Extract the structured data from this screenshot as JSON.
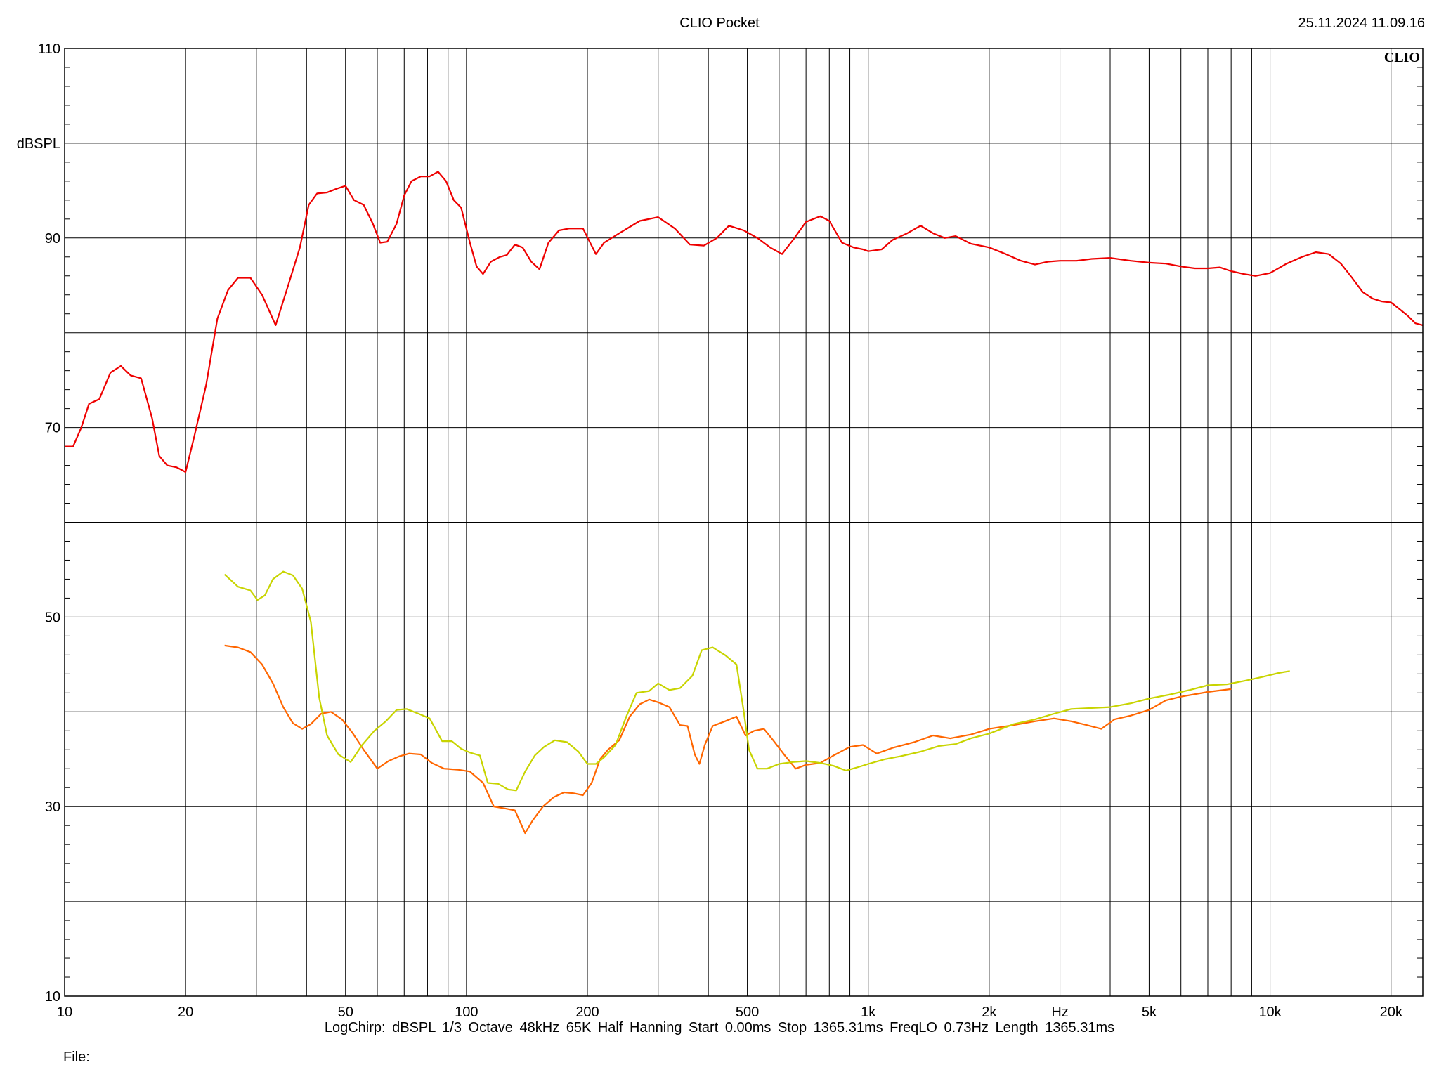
{
  "header": {
    "title": "CLIO Pocket",
    "timestamp": "25.11.2024 11.09.16"
  },
  "footer": {
    "settings": "LogChirp:  dBSPL   1/3 Octave   48kHz   65K   Half Hanning   Start 0.00ms    Stop 1365.31ms    FreqLO 0.73Hz    Length 1365.31ms",
    "file_label": "File:"
  },
  "chart_data": {
    "type": "line",
    "title": "CLIO Pocket",
    "brand_mark": "CLIO",
    "xlabel": "Hz",
    "ylabel": "dBSPL",
    "xscale": "log",
    "xlim": [
      10,
      24000
    ],
    "ylim": [
      10,
      110
    ],
    "grid": true,
    "x_ticks": [
      {
        "value": 10,
        "label": "10"
      },
      {
        "value": 20,
        "label": "20"
      },
      {
        "value": 50,
        "label": "50"
      },
      {
        "value": 100,
        "label": "100"
      },
      {
        "value": 200,
        "label": "200"
      },
      {
        "value": 500,
        "label": "500"
      },
      {
        "value": 1000,
        "label": "1k"
      },
      {
        "value": 2000,
        "label": "2k"
      },
      {
        "value": 5000,
        "label": "5k"
      },
      {
        "value": 10000,
        "label": "10k"
      },
      {
        "value": 20000,
        "label": "20k"
      }
    ],
    "y_ticks": [
      {
        "value": 110,
        "label": "110"
      },
      {
        "value": 90,
        "label": "90"
      },
      {
        "value": 70,
        "label": "70"
      },
      {
        "value": 50,
        "label": "50"
      },
      {
        "value": 30,
        "label": "30"
      },
      {
        "value": 10,
        "label": "10"
      }
    ],
    "series": [
      {
        "color": "#ee0000",
        "points": [
          [
            10,
            68
          ],
          [
            10.5,
            68
          ],
          [
            11,
            70
          ],
          [
            11.5,
            72.5
          ],
          [
            12.2,
            73
          ],
          [
            13,
            75.8
          ],
          [
            13.8,
            76.5
          ],
          [
            14.6,
            75.5
          ],
          [
            15.5,
            75.2
          ],
          [
            16.5,
            71
          ],
          [
            17.2,
            67
          ],
          [
            18,
            66
          ],
          [
            19,
            65.8
          ],
          [
            20,
            65.3
          ],
          [
            21,
            69
          ],
          [
            22.5,
            74.5
          ],
          [
            24,
            81.5
          ],
          [
            25.5,
            84.5
          ],
          [
            27,
            85.8
          ],
          [
            29,
            85.8
          ],
          [
            31,
            84
          ],
          [
            33.5,
            80.8
          ],
          [
            36,
            85
          ],
          [
            38.5,
            89
          ],
          [
            40.5,
            93.5
          ],
          [
            42.5,
            94.7
          ],
          [
            45,
            94.8
          ],
          [
            47.5,
            95.2
          ],
          [
            50,
            95.5
          ],
          [
            52.5,
            94
          ],
          [
            55.5,
            93.5
          ],
          [
            58.5,
            91.5
          ],
          [
            61,
            89.5
          ],
          [
            63.5,
            89.6
          ],
          [
            67,
            91.5
          ],
          [
            70,
            94.5
          ],
          [
            73,
            96
          ],
          [
            77,
            96.5
          ],
          [
            81,
            96.5
          ],
          [
            85,
            97
          ],
          [
            89,
            96
          ],
          [
            93,
            94
          ],
          [
            97,
            93.2
          ],
          [
            102,
            89.5
          ],
          [
            106,
            87
          ],
          [
            110,
            86.2
          ],
          [
            115,
            87.5
          ],
          [
            121,
            88
          ],
          [
            126,
            88.2
          ],
          [
            132,
            89.3
          ],
          [
            138,
            89
          ],
          [
            145,
            87.5
          ],
          [
            152,
            86.7
          ],
          [
            160,
            89.5
          ],
          [
            170,
            90.8
          ],
          [
            180,
            91
          ],
          [
            195,
            91
          ],
          [
            210,
            88.3
          ],
          [
            220,
            89.5
          ],
          [
            240,
            90.5
          ],
          [
            270,
            91.8
          ],
          [
            300,
            92.2
          ],
          [
            330,
            91
          ],
          [
            360,
            89.3
          ],
          [
            390,
            89.2
          ],
          [
            420,
            90
          ],
          [
            450,
            91.3
          ],
          [
            490,
            90.8
          ],
          [
            530,
            90
          ],
          [
            570,
            89
          ],
          [
            610,
            88.3
          ],
          [
            650,
            89.8
          ],
          [
            700,
            91.7
          ],
          [
            760,
            92.3
          ],
          [
            800,
            91.8
          ],
          [
            860,
            89.5
          ],
          [
            920,
            89
          ],
          [
            970,
            88.8
          ],
          [
            1000,
            88.6
          ],
          [
            1080,
            88.8
          ],
          [
            1150,
            89.8
          ],
          [
            1250,
            90.5
          ],
          [
            1350,
            91.3
          ],
          [
            1450,
            90.5
          ],
          [
            1550,
            90
          ],
          [
            1650,
            90.2
          ],
          [
            1800,
            89.4
          ],
          [
            2000,
            89
          ],
          [
            2200,
            88.3
          ],
          [
            2400,
            87.6
          ],
          [
            2600,
            87.2
          ],
          [
            2800,
            87.5
          ],
          [
            3000,
            87.6
          ],
          [
            3300,
            87.6
          ],
          [
            3600,
            87.8
          ],
          [
            4000,
            87.9
          ],
          [
            4500,
            87.6
          ],
          [
            5000,
            87.4
          ],
          [
            5500,
            87.3
          ],
          [
            6000,
            87
          ],
          [
            6500,
            86.8
          ],
          [
            7000,
            86.8
          ],
          [
            7500,
            86.9
          ],
          [
            8000,
            86.5
          ],
          [
            8600,
            86.2
          ],
          [
            9200,
            86
          ],
          [
            10000,
            86.3
          ],
          [
            11000,
            87.3
          ],
          [
            12000,
            88
          ],
          [
            13000,
            88.5
          ],
          [
            14000,
            88.3
          ],
          [
            15000,
            87.3
          ],
          [
            16000,
            85.8
          ],
          [
            17000,
            84.3
          ],
          [
            18000,
            83.6
          ],
          [
            19000,
            83.3
          ],
          [
            20000,
            83.2
          ],
          [
            21000,
            82.5
          ],
          [
            22000,
            81.8
          ],
          [
            23000,
            81
          ],
          [
            24000,
            80.8
          ]
        ]
      },
      {
        "color": "#ff6600",
        "points": [
          [
            25,
            47
          ],
          [
            27,
            46.8
          ],
          [
            29,
            46.3
          ],
          [
            31,
            45
          ],
          [
            33,
            43
          ],
          [
            35,
            40.5
          ],
          [
            37,
            38.8
          ],
          [
            39,
            38.2
          ],
          [
            41,
            38.7
          ],
          [
            43.5,
            39.8
          ],
          [
            46,
            40
          ],
          [
            49,
            39.2
          ],
          [
            52,
            37.8
          ],
          [
            55.5,
            36
          ],
          [
            60,
            34
          ],
          [
            64,
            34.8
          ],
          [
            68,
            35.3
          ],
          [
            72,
            35.6
          ],
          [
            77,
            35.5
          ],
          [
            82,
            34.6
          ],
          [
            88,
            34
          ],
          [
            95,
            33.9
          ],
          [
            102,
            33.7
          ],
          [
            110,
            32.5
          ],
          [
            117,
            30
          ],
          [
            125,
            29.8
          ],
          [
            132,
            29.6
          ],
          [
            140,
            27.2
          ],
          [
            146,
            28.5
          ],
          [
            155,
            30
          ],
          [
            165,
            31
          ],
          [
            175,
            31.5
          ],
          [
            185,
            31.4
          ],
          [
            195,
            31.2
          ],
          [
            205,
            32.5
          ],
          [
            215,
            35
          ],
          [
            225,
            36
          ],
          [
            240,
            37
          ],
          [
            255,
            39.5
          ],
          [
            270,
            40.8
          ],
          [
            285,
            41.3
          ],
          [
            300,
            41
          ],
          [
            320,
            40.5
          ],
          [
            340,
            38.6
          ],
          [
            355,
            38.5
          ],
          [
            370,
            35.5
          ],
          [
            380,
            34.5
          ],
          [
            392,
            36.5
          ],
          [
            410,
            38.5
          ],
          [
            440,
            39
          ],
          [
            470,
            39.5
          ],
          [
            495,
            37.5
          ],
          [
            520,
            38
          ],
          [
            550,
            38.2
          ],
          [
            580,
            37
          ],
          [
            620,
            35.4
          ],
          [
            660,
            34
          ],
          [
            700,
            34.4
          ],
          [
            760,
            34.6
          ],
          [
            820,
            35.4
          ],
          [
            900,
            36.3
          ],
          [
            970,
            36.5
          ],
          [
            1050,
            35.6
          ],
          [
            1150,
            36.2
          ],
          [
            1300,
            36.8
          ],
          [
            1450,
            37.5
          ],
          [
            1600,
            37.2
          ],
          [
            1800,
            37.6
          ],
          [
            2000,
            38.2
          ],
          [
            2300,
            38.6
          ],
          [
            2600,
            39
          ],
          [
            2900,
            39.3
          ],
          [
            3200,
            39
          ],
          [
            3500,
            38.6
          ],
          [
            3800,
            38.2
          ],
          [
            4100,
            39.2
          ],
          [
            4500,
            39.6
          ],
          [
            5000,
            40.2
          ],
          [
            5500,
            41.2
          ],
          [
            6000,
            41.6
          ],
          [
            7000,
            42.1
          ],
          [
            8000,
            42.4
          ]
        ]
      },
      {
        "color": "#c8d400",
        "points": [
          [
            25,
            54.5
          ],
          [
            27,
            53.2
          ],
          [
            29,
            52.8
          ],
          [
            30.2,
            51.8
          ],
          [
            31.5,
            52.3
          ],
          [
            33,
            54
          ],
          [
            35,
            54.8
          ],
          [
            37,
            54.4
          ],
          [
            39,
            53
          ],
          [
            41,
            49.5
          ],
          [
            43,
            41.5
          ],
          [
            45,
            37.5
          ],
          [
            48,
            35.5
          ],
          [
            51.5,
            34.7
          ],
          [
            55,
            36.5
          ],
          [
            59,
            38
          ],
          [
            63,
            39
          ],
          [
            67,
            40.2
          ],
          [
            71,
            40.3
          ],
          [
            76,
            39.8
          ],
          [
            81,
            39.3
          ],
          [
            87,
            36.9
          ],
          [
            92,
            36.9
          ],
          [
            97,
            36.1
          ],
          [
            102,
            35.7
          ],
          [
            108,
            35.4
          ],
          [
            113,
            32.5
          ],
          [
            120,
            32.4
          ],
          [
            127,
            31.8
          ],
          [
            133,
            31.7
          ],
          [
            140,
            33.7
          ],
          [
            148,
            35.4
          ],
          [
            156,
            36.3
          ],
          [
            166,
            37
          ],
          [
            178,
            36.8
          ],
          [
            190,
            35.8
          ],
          [
            200,
            34.5
          ],
          [
            210,
            34.5
          ],
          [
            220,
            35.2
          ],
          [
            235,
            36.5
          ],
          [
            250,
            39.5
          ],
          [
            265,
            42
          ],
          [
            285,
            42.2
          ],
          [
            300,
            43
          ],
          [
            320,
            42.3
          ],
          [
            340,
            42.5
          ],
          [
            365,
            43.8
          ],
          [
            385,
            46.5
          ],
          [
            410,
            46.8
          ],
          [
            440,
            46
          ],
          [
            470,
            45
          ],
          [
            490,
            40
          ],
          [
            505,
            36
          ],
          [
            530,
            34
          ],
          [
            560,
            34
          ],
          [
            600,
            34.5
          ],
          [
            650,
            34.7
          ],
          [
            700,
            34.8
          ],
          [
            760,
            34.6
          ],
          [
            820,
            34.3
          ],
          [
            880,
            33.8
          ],
          [
            950,
            34.2
          ],
          [
            1000,
            34.5
          ],
          [
            1100,
            35
          ],
          [
            1200,
            35.3
          ],
          [
            1350,
            35.8
          ],
          [
            1500,
            36.4
          ],
          [
            1650,
            36.6
          ],
          [
            1800,
            37.2
          ],
          [
            2000,
            37.7
          ],
          [
            2300,
            38.7
          ],
          [
            2600,
            39.2
          ],
          [
            2900,
            39.8
          ],
          [
            3200,
            40.3
          ],
          [
            3600,
            40.4
          ],
          [
            4000,
            40.5
          ],
          [
            4500,
            40.9
          ],
          [
            5000,
            41.4
          ],
          [
            5600,
            41.8
          ],
          [
            6300,
            42.3
          ],
          [
            7000,
            42.8
          ],
          [
            7800,
            42.9
          ],
          [
            8700,
            43.3
          ],
          [
            9600,
            43.7
          ],
          [
            10500,
            44.1
          ],
          [
            11200,
            44.3
          ]
        ]
      }
    ]
  }
}
